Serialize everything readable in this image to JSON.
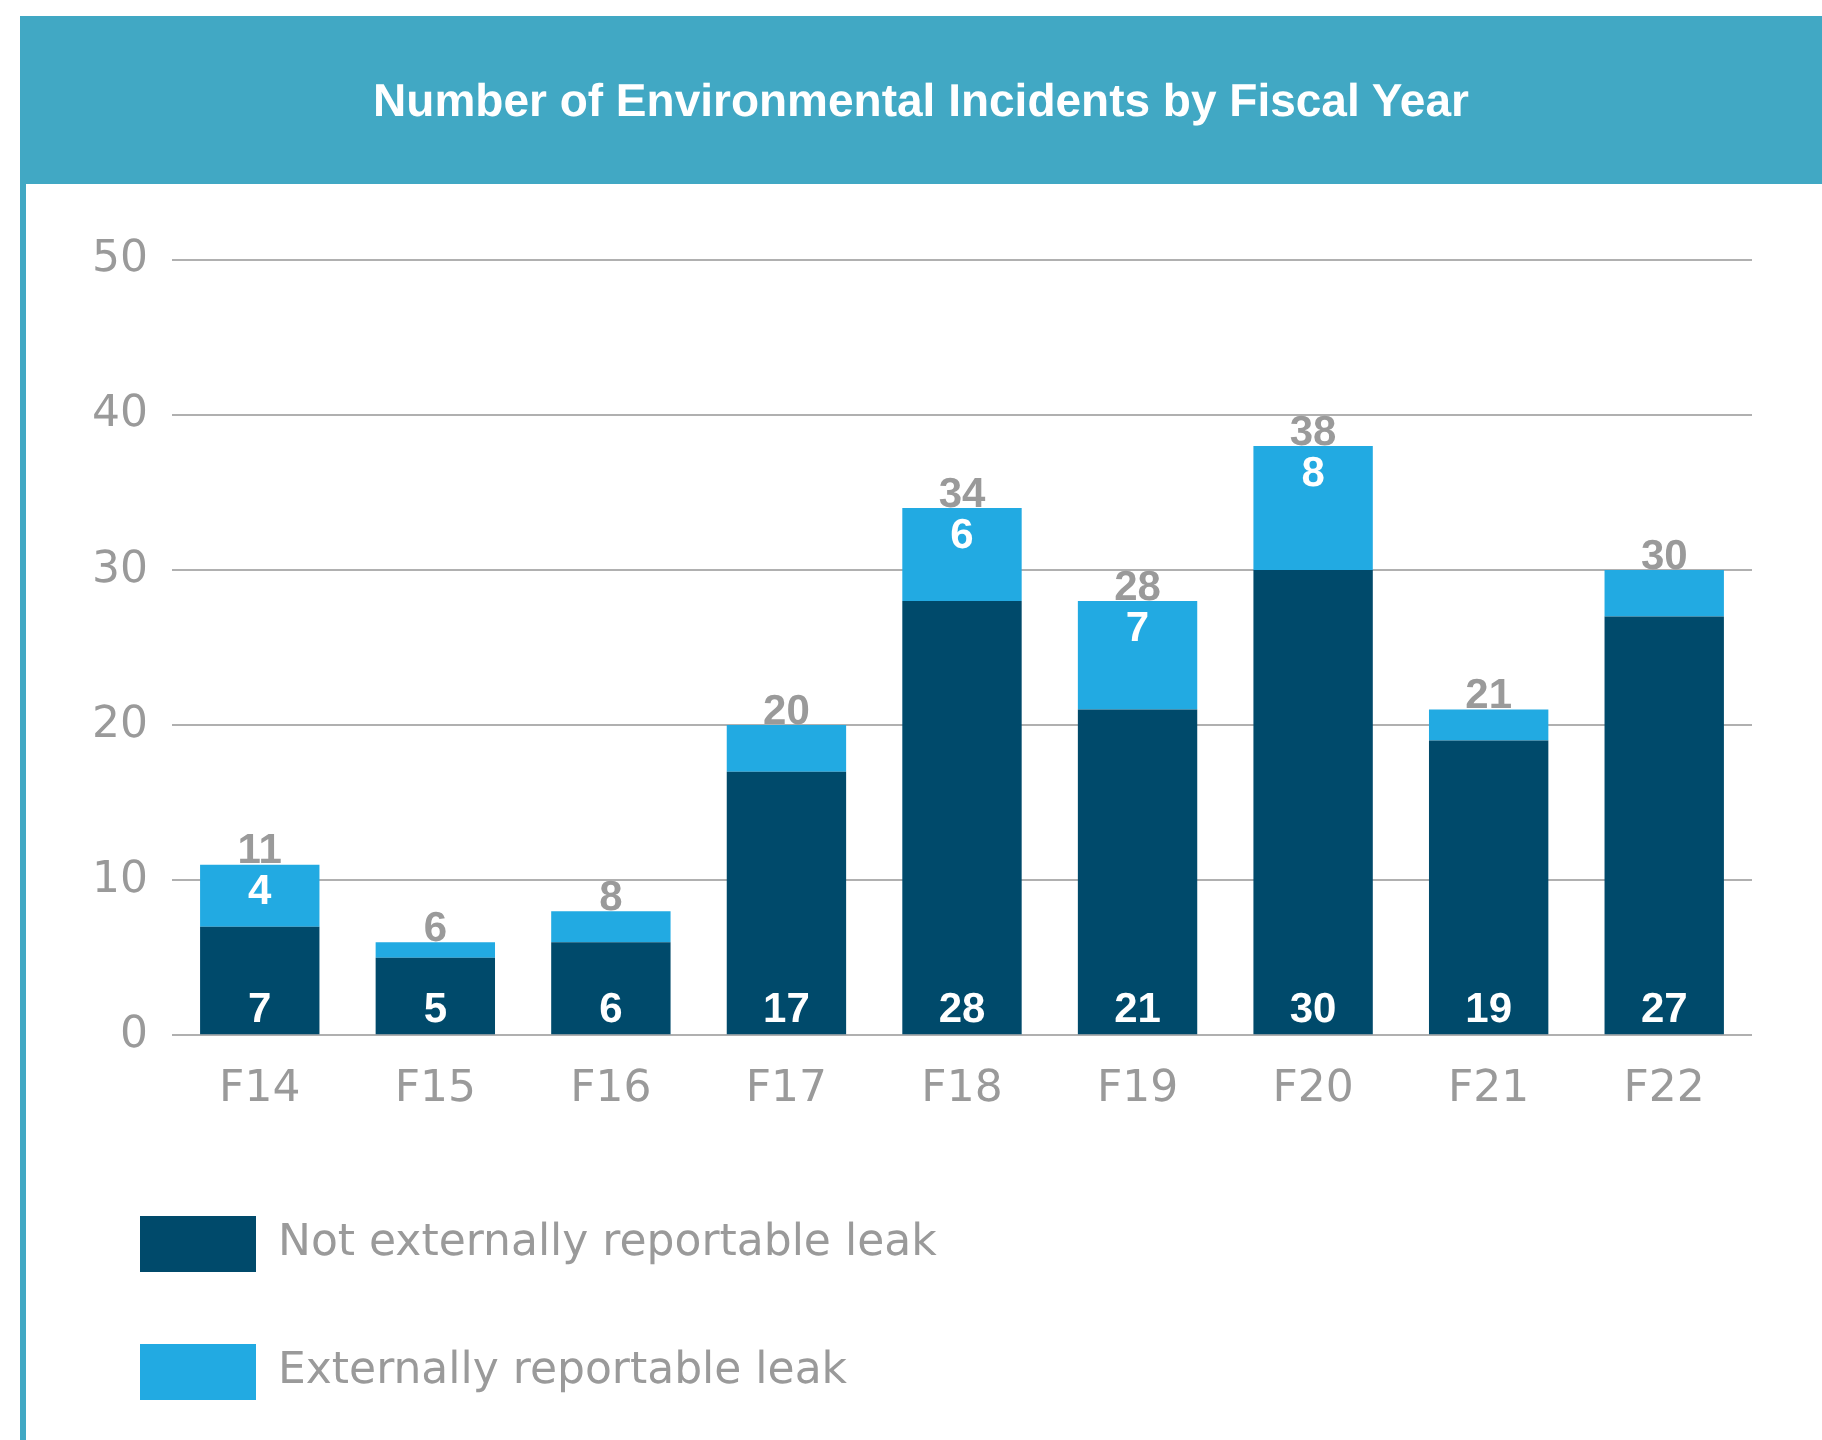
{
  "chart_data": {
    "type": "bar",
    "title": "Number of Environmental Incidents by Fiscal Year",
    "categories": [
      "F14",
      "F15",
      "F16",
      "F17",
      "F18",
      "F19",
      "F20",
      "F21",
      "F22"
    ],
    "stacked": true,
    "series": [
      {
        "name": "Not externally reportable leak",
        "color": "#004a6b",
        "values": [
          7,
          5,
          6,
          17,
          28,
          21,
          30,
          19,
          27
        ],
        "value_labels": [
          "7",
          "5",
          "6",
          "17",
          "28",
          "21",
          "30",
          "19",
          "27"
        ]
      },
      {
        "name": "Externally reportable leak",
        "color": "#22aae2",
        "values": [
          4,
          1,
          2,
          3,
          6,
          7,
          8,
          2,
          3
        ],
        "value_labels": [
          "4",
          null,
          null,
          null,
          "6",
          "7",
          "8",
          null,
          null
        ]
      }
    ],
    "totals": [
      "11",
      "6",
      "8",
      "20",
      "34",
      "28",
      "38",
      "21",
      "30"
    ],
    "ylim": [
      0,
      50
    ],
    "yticks": [
      0,
      10,
      20,
      30,
      40,
      50
    ],
    "grid": "y",
    "legend": "bottom"
  }
}
